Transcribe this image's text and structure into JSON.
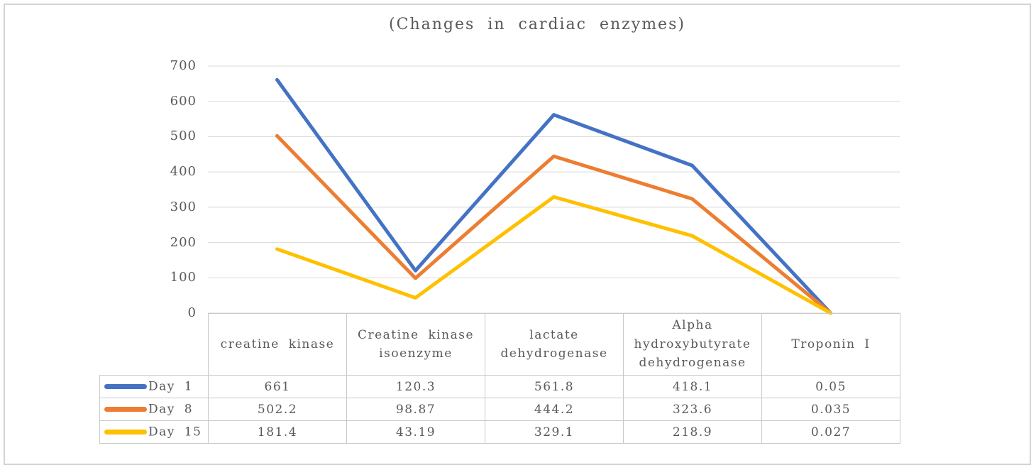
{
  "title": "(Changes in cardiac enzymes)",
  "chart_data": {
    "type": "line",
    "title": "(Changes in cardiac enzymes)",
    "categories": [
      "creatine kinase",
      "Creatine kinase isoenzyme",
      "lactate dehydrogenase",
      "Alpha hydroxybutyrate dehydrogenase",
      "Troponin I"
    ],
    "series": [
      {
        "name": "Day 1",
        "color": "#4472C4",
        "values": [
          661,
          120.3,
          561.8,
          418.1,
          0.05
        ],
        "display": [
          "661",
          "120.3",
          "561.8",
          "418.1",
          "0.05"
        ]
      },
      {
        "name": "Day 8",
        "color": "#ED7D31",
        "values": [
          502.2,
          98.87,
          444.2,
          323.6,
          0.035
        ],
        "display": [
          "502.2",
          "98.87",
          "444.2",
          "323.6",
          "0.035"
        ]
      },
      {
        "name": "Day 15",
        "color": "#FFC000",
        "values": [
          181.4,
          43.19,
          329.1,
          218.9,
          0.027
        ],
        "display": [
          "181.4",
          "43.19",
          "329.1",
          "218.9",
          "0.027"
        ]
      }
    ],
    "yticks": [
      700,
      600,
      500,
      400,
      300,
      200,
      100,
      0
    ],
    "ylim": [
      0,
      700
    ],
    "grid": true,
    "gridline_color": "#d9d9d9",
    "text_color": "#595959",
    "legend_position": "data-table-left",
    "xlabel": "",
    "ylabel": ""
  }
}
